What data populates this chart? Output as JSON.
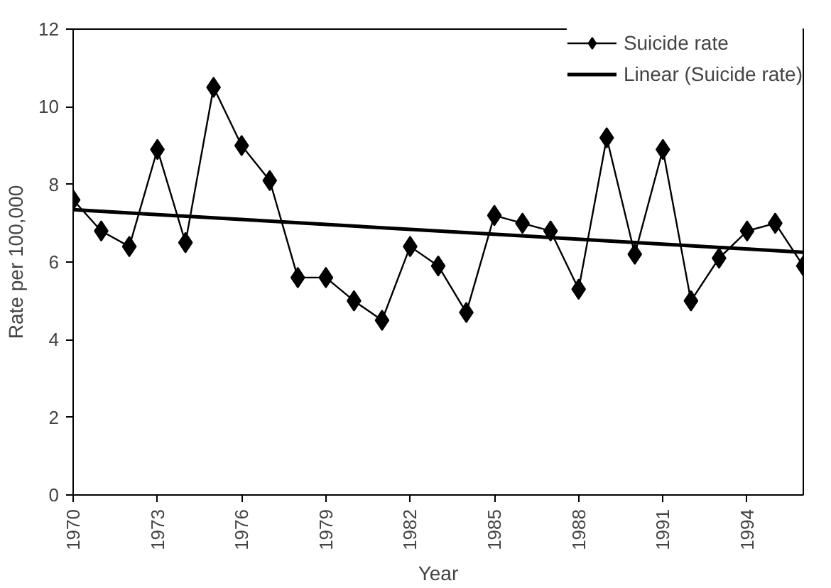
{
  "chart_data": {
    "type": "line",
    "xlabel": "Year",
    "ylabel": "Rate per 100,000",
    "x": [
      1970,
      1971,
      1972,
      1973,
      1974,
      1975,
      1976,
      1977,
      1978,
      1979,
      1980,
      1981,
      1982,
      1983,
      1984,
      1985,
      1986,
      1987,
      1988,
      1989,
      1990,
      1991,
      1992,
      1993,
      1994,
      1995,
      1996
    ],
    "series": [
      {
        "name": "Suicide rate",
        "color": "#000000",
        "marker": "diamond",
        "values": [
          7.6,
          6.8,
          6.4,
          8.9,
          6.5,
          10.5,
          9.0,
          8.1,
          5.6,
          5.6,
          5.0,
          4.5,
          6.4,
          5.9,
          4.7,
          7.2,
          7.0,
          6.8,
          5.3,
          9.2,
          6.2,
          8.9,
          5.0,
          6.1,
          6.8,
          7.0,
          5.9
        ]
      },
      {
        "name": "Linear (Suicide rate)",
        "color": "#000000",
        "marker": "none",
        "x": [
          1970,
          1996
        ],
        "values": [
          7.35,
          6.25
        ]
      }
    ],
    "xlim": [
      1970,
      1996
    ],
    "xticks": [
      1970,
      1973,
      1976,
      1979,
      1982,
      1985,
      1988,
      1991,
      1994
    ],
    "ylim": [
      0,
      12
    ],
    "yticks": [
      0,
      2,
      4,
      6,
      8,
      10,
      12
    ],
    "grid": false,
    "legend": "top right",
    "line_style": "solid"
  }
}
